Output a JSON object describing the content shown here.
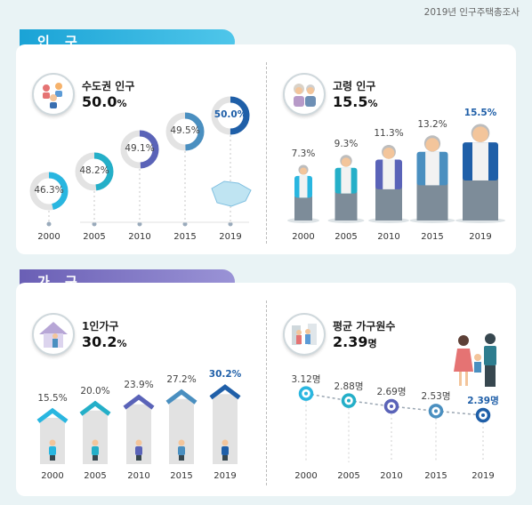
{
  "source": "2019년 인구주택총조사",
  "population_tab": "인 구",
  "household_tab": "가 구",
  "panels": {
    "capital": {
      "label": "수도권 인구",
      "value": "50.0",
      "unit": "%"
    },
    "elderly": {
      "label": "고령 인구",
      "value": "15.5",
      "unit": "%"
    },
    "single": {
      "label": "1인가구",
      "value": "30.2",
      "unit": "%"
    },
    "avg_size": {
      "label": "평균 가구원수",
      "value": "2.39",
      "unit": "명"
    }
  },
  "chart_data": [
    {
      "type": "donut",
      "title": "수도권 인구",
      "categories": [
        "2000",
        "2005",
        "2010",
        "2015",
        "2019"
      ],
      "values": [
        46.3,
        48.2,
        49.1,
        49.5,
        50.0
      ],
      "labels": [
        "46.3%",
        "48.2%",
        "49.1%",
        "49.5%",
        "50.0%"
      ],
      "colors": [
        "#29b6e0",
        "#24afc8",
        "#5a63b8",
        "#4a8fc0",
        "#1f5fa8"
      ]
    },
    {
      "type": "bar",
      "title": "고령 인구",
      "categories": [
        "2000",
        "2005",
        "2010",
        "2015",
        "2019"
      ],
      "values": [
        7.3,
        9.3,
        11.3,
        13.2,
        15.5
      ],
      "labels": [
        "7.3%",
        "9.3%",
        "11.3%",
        "13.2%",
        "15.5%"
      ]
    },
    {
      "type": "bar",
      "title": "1인가구",
      "categories": [
        "2000",
        "2005",
        "2010",
        "2015",
        "2019"
      ],
      "values": [
        15.5,
        20.0,
        23.9,
        27.2,
        30.2
      ],
      "labels": [
        "15.5%",
        "20.0%",
        "23.9%",
        "27.2%",
        "30.2%"
      ],
      "colors": [
        "#29b6e0",
        "#24afc8",
        "#5a63b8",
        "#4a8fc0",
        "#1f5fa8"
      ]
    },
    {
      "type": "line",
      "title": "평균 가구원수",
      "categories": [
        "2000",
        "2005",
        "2010",
        "2015",
        "2019"
      ],
      "values": [
        3.12,
        2.88,
        2.69,
        2.53,
        2.39
      ],
      "labels": [
        "3.12명",
        "2.88명",
        "2.69명",
        "2.53명",
        "2.39명"
      ],
      "colors": [
        "#29b6e0",
        "#24afc8",
        "#5a63b8",
        "#4a8fc0",
        "#1f5fa8"
      ]
    }
  ]
}
